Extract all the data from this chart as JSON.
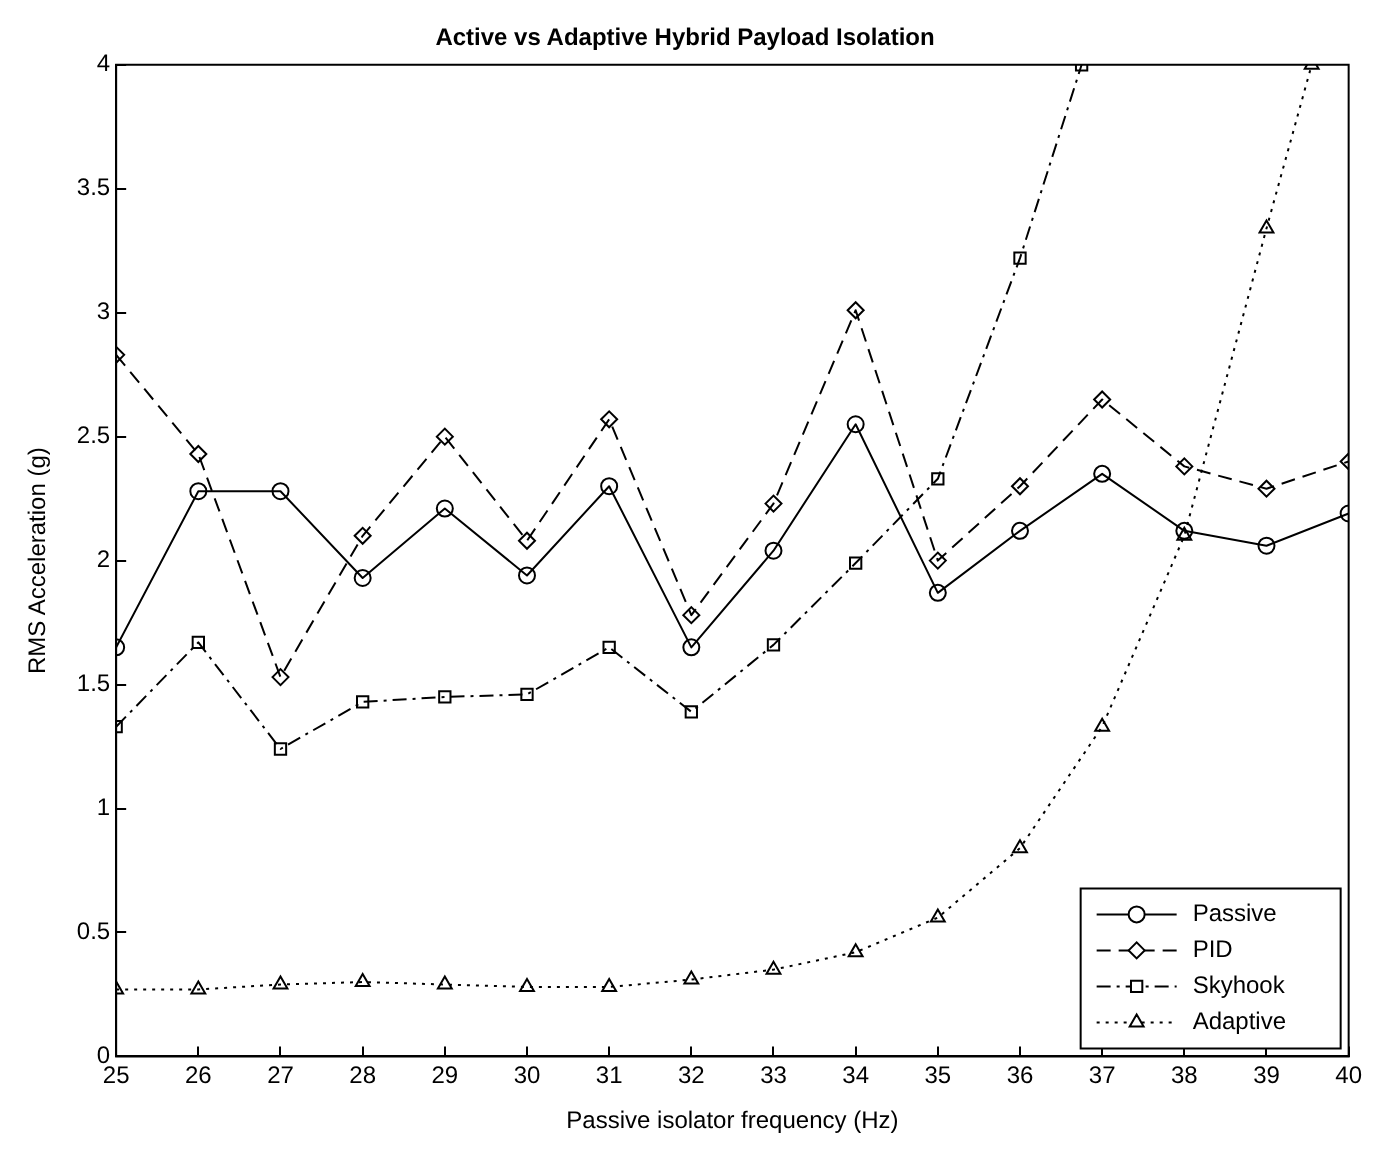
{
  "chart_data": {
    "type": "line",
    "title": "Active vs Adaptive Hybrid Payload Isolation",
    "xlabel": "Passive isolator frequency (Hz)",
    "ylabel": "RMS Acceleration (g)",
    "x": [
      25,
      26,
      27,
      28,
      29,
      30,
      31,
      32,
      33,
      34,
      35,
      36,
      37,
      38,
      39,
      40
    ],
    "series": [
      {
        "name": "Passive",
        "color": "#000000",
        "marker": "circle",
        "line_style": "solid",
        "values": [
          1.65,
          2.28,
          2.28,
          1.93,
          2.21,
          1.94,
          2.3,
          1.65,
          2.04,
          2.55,
          1.87,
          2.12,
          2.35,
          2.12,
          2.06,
          2.19
        ]
      },
      {
        "name": "PID",
        "color": "#000000",
        "marker": "diamond",
        "line_style": "dashed",
        "values": [
          2.83,
          2.43,
          1.53,
          2.1,
          2.5,
          2.08,
          2.57,
          1.78,
          2.23,
          3.01,
          2.0,
          2.3,
          2.65,
          2.38,
          2.29,
          2.4
        ]
      },
      {
        "name": "Skyhook",
        "color": "#000000",
        "marker": "square",
        "line_style": "dashdot",
        "x": [
          25,
          26,
          27,
          28,
          29,
          30,
          31,
          32,
          33,
          34,
          35,
          36,
          36.75
        ],
        "values": [
          1.33,
          1.67,
          1.24,
          1.43,
          1.45,
          1.46,
          1.65,
          1.39,
          1.66,
          1.99,
          2.33,
          3.22,
          4
        ]
      },
      {
        "name": "Adaptive",
        "color": "#000000",
        "marker": "triangle",
        "line_style": "dotted",
        "x": [
          25,
          26,
          27,
          28,
          29,
          30,
          31,
          32,
          33,
          34,
          35,
          36,
          37,
          38,
          39,
          39.55
        ],
        "values": [
          0.27,
          0.27,
          0.29,
          0.3,
          0.29,
          0.28,
          0.28,
          0.31,
          0.35,
          0.42,
          0.56,
          0.84,
          1.33,
          2.1,
          3.34,
          4
        ]
      }
    ],
    "xlim": [
      25,
      40
    ],
    "xticks": [
      25,
      26,
      27,
      28,
      29,
      30,
      31,
      32,
      33,
      34,
      35,
      36,
      37,
      38,
      39,
      40
    ],
    "ylim": [
      0,
      4
    ],
    "yticks": [
      0,
      0.5,
      1,
      1.5,
      2,
      2.5,
      3,
      3.5,
      4
    ],
    "legend": "bottom right",
    "grid": false
  }
}
